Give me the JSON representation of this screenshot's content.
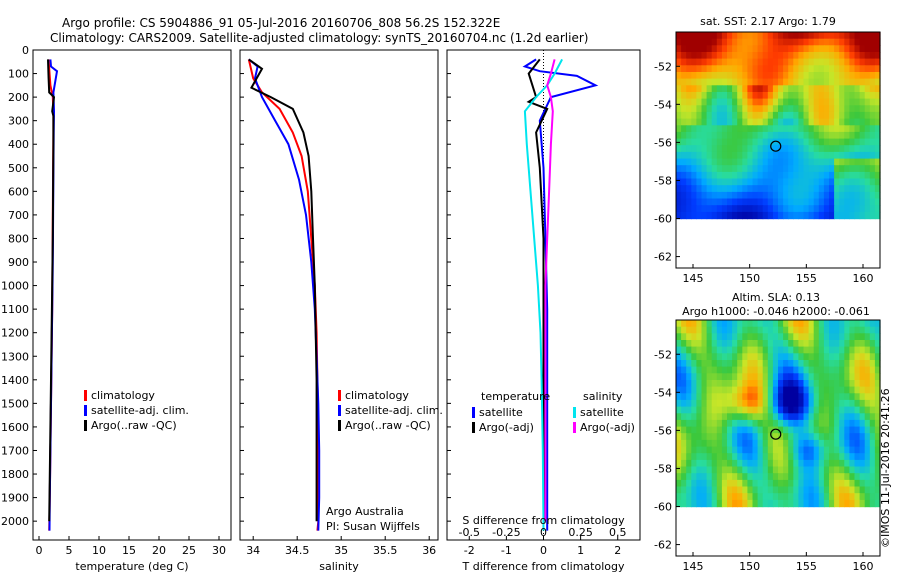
{
  "header": {
    "title_line1": "Argo profile: CS 5904886_91 05-Jul-2016 20160706_808 56.2S 152.322E",
    "title_line2": "Climatology: CARS2009. Satellite-adjusted climatology: synTS_20160704.nc (1.2d earlier)"
  },
  "credits": {
    "source": "Argo Australia",
    "pi": "PI: Susan Wijffels",
    "stamp": "©IMOS 11-Jul-2016 20:41:26"
  },
  "colors": {
    "climatology": "#ff0000",
    "satellite": "#0000ff",
    "argo": "#000000",
    "salinity_sat": "#00e5ee",
    "salinity_argo": "#ff00ff"
  },
  "chart_data": [
    {
      "type": "line",
      "xlabel": "temperature (deg C)",
      "ylabel": "",
      "xlim": [
        -1,
        32
      ],
      "ylim": [
        2080,
        0
      ],
      "xticks": [
        0,
        5,
        10,
        15,
        20,
        25,
        30
      ],
      "yticks": [
        0,
        100,
        200,
        300,
        400,
        500,
        600,
        700,
        800,
        900,
        1000,
        1100,
        1200,
        1300,
        1400,
        1500,
        1600,
        1700,
        1800,
        1900,
        2000
      ],
      "legend": [
        "climatology",
        "satellite-adj. clim.",
        "Argo(..raw -QC)"
      ],
      "series": [
        {
          "name": "climatology",
          "color": "#ff0000",
          "x": [
            1.6,
            1.7,
            1.9,
            2.3,
            2.4,
            2.4,
            2.35,
            2.3,
            2.25,
            2.2,
            2.1,
            2.0,
            1.9,
            1.8,
            1.7
          ],
          "y": [
            40,
            80,
            150,
            200,
            260,
            350,
            500,
            700,
            900,
            1100,
            1300,
            1500,
            1700,
            1900,
            2040
          ]
        },
        {
          "name": "satellite-adj. clim.",
          "color": "#0000ff",
          "x": [
            1.9,
            2.0,
            3.0,
            2.4,
            2.5,
            2.45,
            2.4,
            2.35,
            2.3,
            2.2,
            2.1,
            2.0,
            1.9,
            1.8,
            1.75
          ],
          "y": [
            40,
            70,
            90,
            180,
            260,
            350,
            500,
            700,
            900,
            1100,
            1300,
            1500,
            1700,
            1900,
            2040
          ]
        },
        {
          "name": "Argo(..raw -QC)",
          "color": "#000000",
          "x": [
            1.5,
            1.6,
            1.7,
            2.5,
            2.2,
            2.4,
            2.4,
            2.35,
            2.3,
            2.2,
            2.1,
            2.0,
            1.9,
            1.8,
            1.7
          ],
          "y": [
            40,
            120,
            180,
            200,
            260,
            280,
            400,
            600,
            800,
            1000,
            1200,
            1400,
            1600,
            1800,
            2000
          ]
        }
      ]
    },
    {
      "type": "line",
      "xlabel": "salinity",
      "ylabel": "",
      "xlim": [
        33.85,
        36.1
      ],
      "ylim": [
        2080,
        0
      ],
      "xticks": [
        34,
        34.5,
        35,
        35.5,
        36
      ],
      "legend": [
        "climatology",
        "satellite-adj. clim.",
        "Argo(..raw -QC)"
      ],
      "series": [
        {
          "name": "climatology",
          "color": "#ff0000",
          "x": [
            33.95,
            34.0,
            34.1,
            34.3,
            34.45,
            34.55,
            34.62,
            34.66,
            34.7,
            34.72,
            34.73,
            34.74,
            34.74,
            34.74,
            34.73
          ],
          "y": [
            40,
            120,
            180,
            250,
            350,
            450,
            600,
            800,
            1000,
            1200,
            1400,
            1600,
            1800,
            2000,
            2040
          ]
        },
        {
          "name": "satellite-adj. clim.",
          "color": "#0000ff",
          "x": [
            33.95,
            34.05,
            34.02,
            34.1,
            34.25,
            34.4,
            34.52,
            34.6,
            34.66,
            34.7,
            34.72,
            34.74,
            34.75,
            34.75,
            34.74
          ],
          "y": [
            40,
            70,
            120,
            200,
            300,
            400,
            550,
            700,
            900,
            1100,
            1300,
            1500,
            1700,
            1900,
            2040
          ]
        },
        {
          "name": "Argo(..raw -QC)",
          "color": "#000000",
          "x": [
            33.95,
            34.1,
            33.98,
            34.2,
            34.45,
            34.57,
            34.63,
            34.66,
            34.68,
            34.7,
            34.71,
            34.72,
            34.72,
            34.72,
            34.72
          ],
          "y": [
            40,
            80,
            160,
            200,
            250,
            350,
            450,
            600,
            800,
            1000,
            1200,
            1400,
            1600,
            1800,
            2000
          ]
        }
      ]
    },
    {
      "type": "line",
      "xlabel": "T difference from climatology",
      "xlabel_top": "S difference from climatology",
      "xlim": [
        -2.6,
        2.6
      ],
      "ylim": [
        2080,
        0
      ],
      "xticks": [
        -2,
        -1,
        0,
        1,
        2
      ],
      "xticks_s": [
        -0.5,
        -0.25,
        0,
        0.25,
        0.5
      ],
      "legend_titles": [
        "temperature",
        "salinity"
      ],
      "legend": [
        "satellite",
        "Argo(-adj)",
        "satellite",
        "Argo(-adj)"
      ],
      "series": [
        {
          "name": "satellite",
          "group": "temperature",
          "color": "#0000ff",
          "x": [
            -0.2,
            -0.5,
            -0.1,
            0.9,
            1.4,
            0.2,
            -0.1,
            0.0,
            0.05,
            0.1,
            0.1,
            0.1,
            0.1,
            0.1,
            0.1
          ],
          "y": [
            40,
            70,
            90,
            110,
            150,
            200,
            300,
            500,
            800,
            1100,
            1400,
            1600,
            1800,
            1950,
            2040
          ]
        },
        {
          "name": "Argo(-adj)",
          "group": "temperature",
          "color": "#000000",
          "x": [
            -0.1,
            -0.4,
            -0.3,
            -0.2,
            -0.4,
            0.1,
            -0.2,
            -0.1,
            0.0,
            0.0,
            0.0,
            0.0,
            0.0,
            0.0
          ],
          "y": [
            40,
            100,
            150,
            200,
            220,
            250,
            350,
            500,
            800,
            1100,
            1400,
            1700,
            1900,
            2000
          ]
        },
        {
          "name": "satellite",
          "group": "salinity",
          "color": "#00e5ee",
          "x": [
            0.5,
            0.3,
            0.1,
            -0.2,
            -0.5,
            -0.45,
            -0.35,
            -0.25,
            -0.15,
            -0.08,
            -0.05,
            -0.02,
            0.0
          ],
          "y": [
            40,
            100,
            150,
            200,
            260,
            400,
            600,
            800,
            1000,
            1200,
            1400,
            1700,
            2040
          ]
        },
        {
          "name": "Argo(-adj)",
          "group": "salinity",
          "color": "#ff00ff",
          "x": [
            0.3,
            0.2,
            0.1,
            0.2,
            0.25,
            0.2,
            0.15,
            0.1,
            0.05,
            0.05,
            0.05,
            0.05
          ],
          "y": [
            40,
            100,
            150,
            200,
            260,
            400,
            600,
            800,
            1000,
            1300,
            1600,
            2000
          ]
        }
      ]
    },
    {
      "type": "heatmap",
      "title": "sat. SST: 2.17 Argo: 1.79",
      "xticks": [
        145,
        150,
        155,
        160
      ],
      "yticks": [
        -52,
        -54,
        -56,
        -58,
        -60,
        -62
      ],
      "xlim": [
        143.5,
        161.5
      ],
      "ylim": [
        -62.6,
        -50.2
      ],
      "argo_position": {
        "lon": 152.3,
        "lat": -56.2
      }
    },
    {
      "type": "heatmap",
      "title": "Altim. SLA: 0.13",
      "subtitle": "Argo h1000: -0.046 h2000: -0.061",
      "xticks": [
        145,
        150,
        155,
        160
      ],
      "yticks": [
        -52,
        -54,
        -56,
        -58,
        -60,
        -62
      ],
      "xlim": [
        143.5,
        161.5
      ],
      "ylim": [
        -62.6,
        -50.2
      ],
      "argo_position": {
        "lon": 152.3,
        "lat": -56.2
      }
    }
  ]
}
